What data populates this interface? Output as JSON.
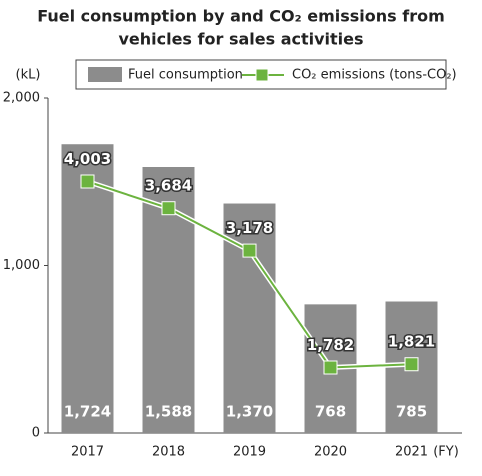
{
  "chart_data": {
    "type": "bar-line",
    "title": [
      "Fuel consumption by and CO₂ emissions from",
      "vehicles for sales activities"
    ],
    "y_label": "(kL)",
    "x_label": "(FY)",
    "categories": [
      "2017",
      "2018",
      "2019",
      "2020",
      "2021"
    ],
    "series": [
      {
        "name": "Fuel consumption",
        "color": "#8c8c8c",
        "type": "bar",
        "values": [
          1724,
          1588,
          1370,
          768,
          785
        ],
        "value_labels": [
          "1,724",
          "1,588",
          "1,370",
          "768",
          "785"
        ]
      },
      {
        "name": "CO₂ emissions (tons-CO₂)",
        "color": "#6cb33f",
        "type": "line",
        "axis": "y2",
        "values": [
          4003,
          3684,
          3178,
          1782,
          1821
        ],
        "value_labels": [
          "4,003",
          "3,684",
          "3,178",
          "1,782",
          "1,821"
        ]
      }
    ],
    "ylim": [
      0,
      2000
    ],
    "yticks": [
      0,
      {
        "value": 1000,
        "label": "1,000"
      },
      {
        "value": 2000,
        "label": "2,000"
      }
    ],
    "y2lim": [
      1000,
      5000
    ]
  }
}
